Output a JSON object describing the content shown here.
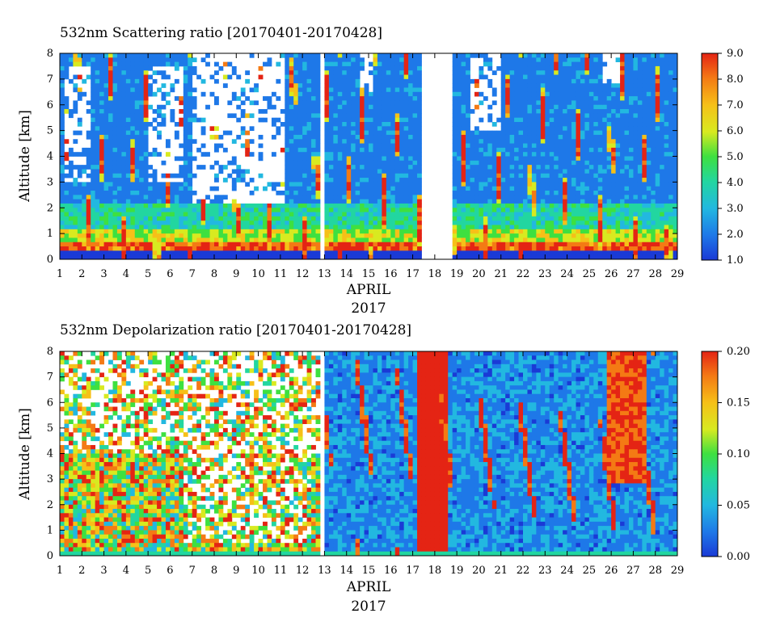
{
  "chart_data": [
    {
      "type": "heatmap",
      "title": "532nm Scattering ratio [20170401-20170428]",
      "ylabel": "Altitude [km]",
      "xlabel": "APRIL",
      "year_label": "2017",
      "x_ticks": [
        "1",
        "2",
        "3",
        "4",
        "5",
        "6",
        "7",
        "8",
        "9",
        "10",
        "11",
        "12",
        "13",
        "14",
        "15",
        "16",
        "17",
        "18",
        "19",
        "20",
        "21",
        "22",
        "23",
        "24",
        "25",
        "26",
        "27",
        "28",
        "29"
      ],
      "y_ticks": [
        "0",
        "1",
        "2",
        "3",
        "4",
        "5",
        "6",
        "7",
        "8"
      ],
      "xlim": [
        1,
        29
      ],
      "ylim": [
        0,
        8
      ],
      "colorbar": {
        "range": [
          1.0,
          9.0
        ],
        "tick_labels": [
          "9.0",
          "8.0",
          "7.0",
          "6.0",
          "5.0",
          "4.0",
          "3.0",
          "2.0",
          "1.0"
        ]
      },
      "colors": [
        "#1a3ad6",
        "#1e78e8",
        "#22b8e0",
        "#22d6a0",
        "#3ee040",
        "#d8ea20",
        "#f6c018",
        "#f47a14",
        "#e42414"
      ]
    },
    {
      "type": "heatmap",
      "title": "532nm Depolarization ratio [20170401-20170428]",
      "ylabel": "Altitude [km]",
      "xlabel": "APRIL",
      "year_label": "2017",
      "x_ticks": [
        "1",
        "2",
        "3",
        "4",
        "5",
        "6",
        "7",
        "8",
        "9",
        "10",
        "11",
        "12",
        "13",
        "14",
        "15",
        "16",
        "17",
        "18",
        "19",
        "20",
        "21",
        "22",
        "23",
        "24",
        "25",
        "26",
        "27",
        "28",
        "29"
      ],
      "y_ticks": [
        "0",
        "1",
        "2",
        "3",
        "4",
        "5",
        "6",
        "7",
        "8"
      ],
      "xlim": [
        1,
        29
      ],
      "ylim": [
        0,
        8
      ],
      "colorbar": {
        "range": [
          0.0,
          0.2
        ],
        "tick_labels": [
          "0.20",
          "0.15",
          "0.10",
          "0.05",
          "0.00"
        ]
      },
      "colors": [
        "#1a3ad6",
        "#1e78e8",
        "#22b8e0",
        "#22d6a0",
        "#3ee040",
        "#d8ea20",
        "#f6c018",
        "#f47a14",
        "#e42414"
      ]
    }
  ]
}
